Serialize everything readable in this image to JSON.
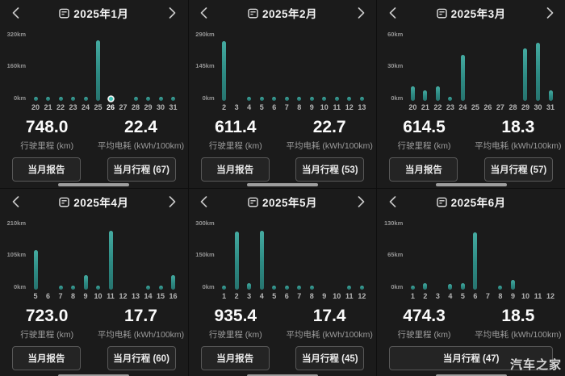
{
  "watermark": "汽车之家",
  "stats_captions": {
    "distance": "行驶里程 (km)",
    "energy": "平均电耗 (kWh/100km)"
  },
  "months": [
    {
      "title": "2025年1月",
      "has_prev": true,
      "has_next": true,
      "stats": [
        {
          "value": "748.0",
          "label": "行驶里程 (km)"
        },
        {
          "value": "22.4",
          "label": "平均电耗 (kWh/100km)"
        }
      ],
      "buttons": [
        {
          "label": "当月报告"
        },
        {
          "label": "当月行程 (67)"
        }
      ]
    },
    {
      "title": "2025年2月",
      "has_prev": true,
      "has_next": true,
      "stats": [
        {
          "value": "611.4",
          "label": "行驶里程 (km)"
        },
        {
          "value": "22.7",
          "label": "平均电耗 (kWh/100km)"
        }
      ],
      "buttons": [
        {
          "label": "当月报告"
        },
        {
          "label": "当月行程 (53)"
        }
      ]
    },
    {
      "title": "2025年3月",
      "has_prev": true,
      "has_next": true,
      "stats": [
        {
          "value": "614.5",
          "label": "行驶里程 (km)"
        },
        {
          "value": "18.3",
          "label": "平均电耗 (kWh/100km)"
        }
      ],
      "buttons": [
        {
          "label": "当月报告"
        },
        {
          "label": "当月行程 (57)"
        }
      ]
    },
    {
      "title": "2025年4月",
      "has_prev": true,
      "has_next": true,
      "stats": [
        {
          "value": "723.0",
          "label": "行驶里程 (km)"
        },
        {
          "value": "17.7",
          "label": "平均电耗 (kWh/100km)"
        }
      ],
      "buttons": [
        {
          "label": "当月报告"
        },
        {
          "label": "当月行程 (60)"
        }
      ]
    },
    {
      "title": "2025年5月",
      "has_prev": true,
      "has_next": true,
      "stats": [
        {
          "value": "935.4",
          "label": "行驶里程 (km)"
        },
        {
          "value": "17.4",
          "label": "平均电耗 (kWh/100km)"
        }
      ],
      "buttons": [
        {
          "label": "当月报告"
        },
        {
          "label": "当月行程 (45)"
        }
      ]
    },
    {
      "title": "2025年6月",
      "has_prev": true,
      "has_next": false,
      "stats": [
        {
          "value": "474.3",
          "label": "行驶里程 (km)"
        },
        {
          "value": "18.5",
          "label": "平均电耗 (kWh/100km)"
        }
      ],
      "buttons": [
        {
          "label": "当月行程 (47)"
        }
      ]
    }
  ],
  "chart_data": [
    {
      "type": "bar",
      "title": "2025年1月",
      "unit": "km",
      "categories": [
        "20",
        "21",
        "22",
        "23",
        "24",
        "25",
        "26",
        "27",
        "28",
        "29",
        "30",
        "31"
      ],
      "values": [
        8,
        6,
        6,
        7,
        7,
        305,
        12,
        0,
        6,
        6,
        6,
        7
      ],
      "y_ticks": [
        "320km",
        "160km",
        "0km"
      ],
      "ylim": [
        0,
        320
      ],
      "selected_index": 6
    },
    {
      "type": "bar",
      "title": "2025年2月",
      "unit": "km",
      "categories": [
        "2",
        "3",
        "4",
        "5",
        "6",
        "7",
        "8",
        "9",
        "10",
        "11",
        "12",
        "13"
      ],
      "values": [
        272,
        0,
        8,
        8,
        7,
        7,
        8,
        8,
        7,
        8,
        6,
        8
      ],
      "y_ticks": [
        "290km",
        "145km",
        "0km"
      ],
      "ylim": [
        0,
        290
      ],
      "selected_index": null
    },
    {
      "type": "bar",
      "title": "2025年3月",
      "unit": "km",
      "categories": [
        "20",
        "21",
        "22",
        "23",
        "24",
        "25",
        "26",
        "27",
        "28",
        "29",
        "30",
        "31"
      ],
      "values": [
        14,
        10,
        14,
        4,
        43,
        0,
        0,
        0,
        0,
        49,
        55,
        10
      ],
      "y_ticks": [
        "60km",
        "30km",
        "0km"
      ],
      "ylim": [
        0,
        60
      ],
      "selected_index": null
    },
    {
      "type": "bar",
      "title": "2025年4月",
      "unit": "km",
      "categories": [
        "5",
        "6",
        "7",
        "8",
        "9",
        "10",
        "11",
        "12",
        "13",
        "14",
        "15",
        "16"
      ],
      "values": [
        130,
        0,
        6,
        6,
        48,
        6,
        194,
        0,
        0,
        6,
        6,
        48
      ],
      "y_ticks": [
        "210km",
        "105km",
        "0km"
      ],
      "ylim": [
        0,
        210
      ],
      "selected_index": null
    },
    {
      "type": "bar",
      "title": "2025年5月",
      "unit": "km",
      "categories": [
        "1",
        "2",
        "3",
        "4",
        "5",
        "6",
        "7",
        "8",
        "9",
        "10",
        "11",
        "12"
      ],
      "values": [
        8,
        273,
        30,
        277,
        10,
        8,
        10,
        10,
        0,
        0,
        8,
        10
      ],
      "y_ticks": [
        "300km",
        "150km",
        "0km"
      ],
      "ylim": [
        0,
        300
      ],
      "selected_index": null
    },
    {
      "type": "bar",
      "title": "2025年6月",
      "unit": "km",
      "categories": [
        "1",
        "2",
        "3",
        "4",
        "5",
        "6",
        "7",
        "8",
        "9",
        "10",
        "11",
        "12"
      ],
      "values": [
        5,
        13,
        0,
        11,
        13,
        117,
        0,
        5,
        20,
        0,
        0,
        0
      ],
      "y_ticks": [
        "130km",
        "65km",
        "0km"
      ],
      "ylim": [
        0,
        130
      ],
      "selected_index": null
    }
  ]
}
